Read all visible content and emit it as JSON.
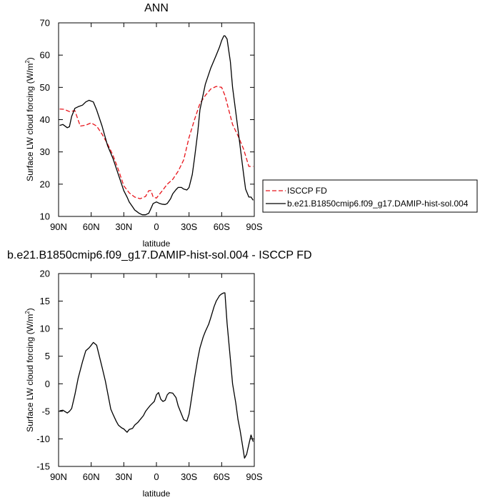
{
  "chart_data": [
    {
      "type": "line",
      "title": "ANN",
      "xlabel": "latitude",
      "ylabel": "Surface LW cloud forcing (W/m",
      "ylabel_sup": "2",
      "ylabel_tail": ")",
      "xlim": [
        90,
        -90
      ],
      "ylim": [
        10,
        70
      ],
      "x_ticks": [
        90,
        60,
        30,
        0,
        -30,
        -60,
        -90
      ],
      "x_tick_labels": [
        "90N",
        "60N",
        "30N",
        "0",
        "30S",
        "60S",
        "90S"
      ],
      "y_ticks": [
        10,
        20,
        30,
        40,
        50,
        60,
        70
      ],
      "y_tick_labels": [
        "10",
        "20",
        "30",
        "40",
        "50",
        "60",
        "70"
      ],
      "grid": false,
      "legend_position": "right",
      "series": [
        {
          "name": "ISCCP FD",
          "color": "#e8141b",
          "dash": "dashed",
          "x": [
            89,
            85,
            80,
            75,
            70,
            65,
            60,
            55,
            50,
            45,
            40,
            35,
            30,
            25,
            20,
            15,
            10,
            7,
            5,
            3,
            0,
            -5,
            -10,
            -15,
            -20,
            -25,
            -30,
            -35,
            -40,
            -45,
            -50,
            -55,
            -60,
            -63,
            -65,
            -70,
            -75,
            -80,
            -85,
            -89
          ],
          "y": [
            43.3,
            43.2,
            42.5,
            42.8,
            38.0,
            38.3,
            39.0,
            38.0,
            35.5,
            32.5,
            29.0,
            24.5,
            19.5,
            17.3,
            16.0,
            15.5,
            16.2,
            18.0,
            18.0,
            16.0,
            15.7,
            17.8,
            20.0,
            21.5,
            24.0,
            27.5,
            34.5,
            40.0,
            45.0,
            47.5,
            49.5,
            50.3,
            50.0,
            47.5,
            45.0,
            38.5,
            35.0,
            31.0,
            25.5,
            25.5
          ]
        },
        {
          "name": "b.e21.B1850cmip6.f09_g17.DAMIP-hist-sol.004",
          "color": "#000000",
          "dash": "solid",
          "x": [
            89,
            86,
            82,
            80,
            78,
            75,
            72,
            68,
            65,
            62,
            58,
            55,
            50,
            45,
            40,
            35,
            30,
            27,
            25,
            22,
            20,
            18,
            16,
            13,
            10,
            7,
            5,
            3,
            0,
            -3,
            -5,
            -8,
            -10,
            -13,
            -15,
            -18,
            -20,
            -23,
            -25,
            -28,
            -30,
            -33,
            -35,
            -38,
            -40,
            -45,
            -50,
            -55,
            -58,
            -60,
            -62,
            -63,
            -65,
            -68,
            -70,
            -75,
            -78,
            -80,
            -82,
            -85,
            -87,
            -89
          ],
          "y": [
            38.2,
            38.5,
            37.5,
            37.8,
            41.0,
            43.5,
            44.0,
            44.5,
            45.5,
            46.0,
            45.5,
            43.0,
            38.0,
            32.0,
            28.0,
            23.0,
            18.0,
            16.0,
            14.5,
            13.0,
            12.0,
            11.5,
            11.0,
            10.5,
            10.5,
            11.0,
            12.5,
            14.0,
            14.5,
            14.0,
            13.8,
            13.7,
            14.0,
            15.5,
            17.0,
            18.3,
            19.0,
            19.0,
            18.5,
            18.2,
            19.0,
            23.0,
            28.0,
            36.0,
            43.0,
            51.0,
            56.0,
            60.0,
            62.5,
            64.5,
            66.0,
            66.0,
            65.0,
            58.0,
            50.0,
            37.0,
            29.0,
            23.5,
            18.5,
            16.0,
            16.0,
            15.0
          ]
        }
      ]
    },
    {
      "type": "line",
      "title": "b.e21.B1850cmip6.f09_g17.DAMIP-hist-sol.004 - ISCCP FD",
      "xlabel": "latitude",
      "ylabel": "Surface LW cloud forcing (W/m",
      "ylabel_sup": "2",
      "ylabel_tail": ")",
      "xlim": [
        90,
        -90
      ],
      "ylim": [
        -15,
        20
      ],
      "x_ticks": [
        90,
        60,
        30,
        0,
        -30,
        -60,
        -90
      ],
      "x_tick_labels": [
        "90N",
        "60N",
        "30N",
        "0",
        "30S",
        "60S",
        "90S"
      ],
      "y_ticks": [
        -15,
        -10,
        -5,
        0,
        5,
        10,
        15,
        20
      ],
      "y_tick_labels": [
        "-15",
        "-10",
        "-5",
        "0",
        "5",
        "10",
        "15",
        "20"
      ],
      "grid": false,
      "series": [
        {
          "name": "",
          "color": "#000000",
          "dash": "solid",
          "x": [
            89,
            86,
            82,
            80,
            78,
            75,
            72,
            68,
            65,
            62,
            60,
            58,
            55,
            50,
            47,
            45,
            42,
            40,
            37,
            35,
            32,
            30,
            27,
            25,
            22,
            20,
            17,
            15,
            12,
            10,
            8,
            6,
            4,
            2,
            0,
            -2,
            -4,
            -6,
            -8,
            -10,
            -12,
            -15,
            -18,
            -20,
            -22,
            -25,
            -28,
            -30,
            -32,
            -35,
            -38,
            -40,
            -43,
            -45,
            -48,
            -50,
            -53,
            -55,
            -58,
            -60,
            -62,
            -63,
            -65,
            -68,
            -70,
            -73,
            -75,
            -77,
            -79,
            -81,
            -83,
            -85,
            -87,
            -89
          ],
          "y": [
            -4.9,
            -4.8,
            -5.3,
            -5.0,
            -4.5,
            -2.0,
            1.0,
            4.0,
            6.0,
            6.5,
            7.0,
            7.5,
            7.0,
            3.0,
            0.5,
            -1.5,
            -4.6,
            -5.5,
            -6.8,
            -7.5,
            -8.0,
            -8.2,
            -8.8,
            -8.3,
            -8.1,
            -7.5,
            -7.0,
            -6.5,
            -5.8,
            -5.0,
            -4.5,
            -4.0,
            -3.6,
            -3.2,
            -2.0,
            -1.6,
            -2.8,
            -3.2,
            -3.0,
            -2.0,
            -1.6,
            -1.7,
            -2.5,
            -4.0,
            -5.0,
            -6.5,
            -6.8,
            -5.5,
            -3.0,
            1.0,
            4.5,
            6.5,
            8.5,
            9.5,
            10.8,
            12.0,
            14.0,
            15.0,
            16.0,
            16.3,
            16.5,
            16.5,
            11.0,
            4.5,
            0.0,
            -3.5,
            -6.5,
            -8.5,
            -11.0,
            -13.5,
            -12.8,
            -11.0,
            -9.3,
            -10.5
          ]
        }
      ]
    }
  ]
}
